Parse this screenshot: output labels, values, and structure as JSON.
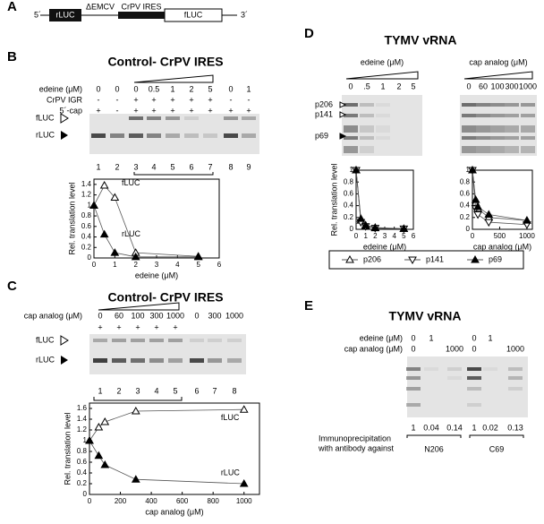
{
  "panel_labels": {
    "a": "A",
    "b": "B",
    "c": "C",
    "d": "D",
    "e": "E"
  },
  "construct": {
    "five_prime": "5´",
    "rluc": "rLUC",
    "demcv": "ΔEMCV",
    "crpv_ires": "CrPV IRES",
    "fluc": "fLUC",
    "three_prime": "3´"
  },
  "panel_b": {
    "title": "Control- CrPV IRES",
    "rows": [
      {
        "label": "edeine (μM)",
        "cells": [
          "0",
          "0",
          "0",
          "0.5",
          "1",
          "2",
          "5",
          "0",
          "1"
        ]
      },
      {
        "label": "CrPV IGR",
        "cells": [
          "-",
          "-",
          "+",
          "+",
          "+",
          "+",
          "+",
          "-",
          "-"
        ]
      },
      {
        "label": "5´-cap",
        "cells": [
          "+",
          "-",
          "+",
          "+",
          "+",
          "+",
          "+",
          "+",
          "+"
        ]
      }
    ],
    "bands": [
      "fLUC",
      "rLUC"
    ],
    "lanes": [
      "1",
      "2",
      "3",
      "4",
      "5",
      "6",
      "7",
      "8",
      "9"
    ]
  },
  "panel_c": {
    "title": "Control- CrPV IRES",
    "rows": [
      {
        "label": "cap analog (μM)",
        "cells": [
          "0",
          "60",
          "100",
          "300",
          "1000",
          "0",
          "300",
          "1000"
        ]
      }
    ],
    "plus_row": [
      "+",
      "+",
      "+",
      "+",
      "+"
    ],
    "bands": [
      "fLUC",
      "rLUC"
    ],
    "lanes": [
      "1",
      "2",
      "3",
      "4",
      "5",
      "6",
      "7",
      "8"
    ]
  },
  "panel_d": {
    "title": "TYMV vRNA",
    "groups": [
      {
        "label": "edeine (μM)",
        "cells": [
          "0",
          ".5",
          "1",
          "2",
          "5"
        ]
      },
      {
        "label": "cap analog (μM)",
        "cells": [
          "0",
          "60",
          "100",
          "300",
          "1000"
        ]
      }
    ],
    "bands": [
      "p206",
      "p141",
      "p69"
    ]
  },
  "panel_e": {
    "title": "TYMV vRNA",
    "rows": [
      {
        "label": "edeine (μM)",
        "cells": [
          "0",
          "1",
          null,
          "0",
          "1",
          null
        ]
      },
      {
        "label": "cap analog (μM)",
        "cells": [
          "0",
          null,
          "1000",
          "0",
          null,
          "1000"
        ]
      }
    ],
    "levels": [
      "1",
      "0.04",
      "0.14",
      "1",
      "0.02",
      "0.13"
    ],
    "ip_label": [
      "Immunoprecipitation",
      "with antibody against"
    ],
    "antibodies": [
      "N206",
      "C69"
    ]
  },
  "chart_data": [
    {
      "type": "line",
      "xlabel": "edeine (μM)",
      "ylabel": "Rel. translation level",
      "x": [
        0,
        0.5,
        1,
        2,
        5
      ],
      "xlim": [
        0,
        6
      ],
      "xticks": [
        0,
        1,
        2,
        3,
        4,
        5,
        6
      ],
      "ylim": [
        0,
        1.5
      ],
      "yticks": [
        0,
        0.2,
        0.4,
        0.6,
        0.8,
        1,
        1.2,
        1.4
      ],
      "series": [
        {
          "name": "fLUC",
          "marker": "open-up",
          "values": [
            1,
            1.38,
            1.15,
            0.1,
            0.03
          ]
        },
        {
          "name": "rLUC",
          "marker": "filled-up",
          "values": [
            1,
            0.45,
            0.1,
            0.02,
            0.02
          ]
        }
      ]
    },
    {
      "type": "line",
      "xlabel": "cap analog (μM)",
      "ylabel": "Rel. translation level",
      "x": [
        0,
        60,
        100,
        300,
        1000
      ],
      "xlim": [
        0,
        1100
      ],
      "xticks": [
        0,
        200,
        400,
        600,
        800,
        1000
      ],
      "ylim": [
        0,
        1.7
      ],
      "yticks": [
        0,
        0.2,
        0.4,
        0.6,
        0.8,
        1,
        1.2,
        1.4,
        1.6
      ],
      "series": [
        {
          "name": "fLUC",
          "marker": "open-up",
          "values": [
            1,
            1.25,
            1.35,
            1.55,
            1.58
          ]
        },
        {
          "name": "rLUC",
          "marker": "filled-up",
          "values": [
            1,
            0.72,
            0.55,
            0.28,
            0.2
          ]
        }
      ]
    },
    {
      "type": "line",
      "xlabel": "edeine (μM)",
      "ylabel": "Rel. translation level",
      "x": [
        0,
        0.5,
        1,
        2,
        5
      ],
      "xlim": [
        0,
        6
      ],
      "xticks": [
        0,
        1,
        2,
        3,
        4,
        5,
        6
      ],
      "ylim": [
        0,
        1
      ],
      "yticks": [
        0,
        0.2,
        0.4,
        0.6,
        0.8,
        1
      ],
      "series": [
        {
          "name": "p206",
          "marker": "open-up",
          "values": [
            1,
            0.15,
            0.06,
            0.02,
            0.01
          ]
        },
        {
          "name": "p141",
          "marker": "open-down",
          "values": [
            1,
            0.12,
            0.05,
            0.02,
            0.01
          ]
        },
        {
          "name": "p69",
          "marker": "filled-up",
          "values": [
            1,
            0.18,
            0.07,
            0.03,
            0.01
          ]
        }
      ]
    },
    {
      "type": "line",
      "xlabel": "cap analog (μM)",
      "x": [
        0,
        60,
        100,
        300,
        1000
      ],
      "xlim": [
        0,
        1100
      ],
      "xticks": [
        0,
        500,
        1000
      ],
      "ylim": [
        0,
        1
      ],
      "yticks": [
        0,
        0.2,
        0.4,
        0.6,
        0.8,
        1
      ],
      "series": [
        {
          "marker": "open-up",
          "values": [
            1,
            0.45,
            0.35,
            0.2,
            0.15
          ]
        },
        {
          "marker": "open-down",
          "values": [
            1,
            0.35,
            0.25,
            0.12,
            0.08
          ]
        },
        {
          "marker": "filled-up",
          "values": [
            1,
            0.5,
            0.38,
            0.25,
            0.15
          ]
        }
      ]
    }
  ]
}
